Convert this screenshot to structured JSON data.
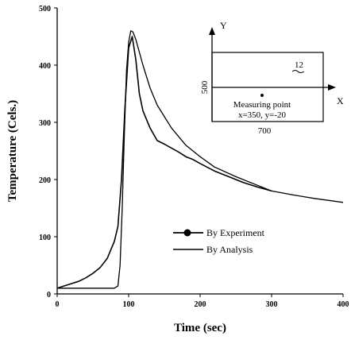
{
  "chart_data": {
    "type": "line",
    "xlabel": "Time (sec)",
    "ylabel": "Temperature (Cels.)",
    "xlim": [
      0,
      400
    ],
    "ylim": [
      0,
      500
    ],
    "x_ticks": [
      "0",
      "100",
      "200",
      "300",
      "400"
    ],
    "y_ticks": [
      "0",
      "100",
      "200",
      "300",
      "400",
      "500"
    ],
    "legend_position": "center-right",
    "series": [
      {
        "name": "By Experiment",
        "marker": "circle",
        "x": [
          0,
          10,
          20,
          30,
          40,
          50,
          60,
          70,
          80,
          85,
          90,
          95,
          100,
          105,
          110,
          115,
          120,
          130,
          140,
          150,
          160,
          170,
          180,
          190,
          200,
          220,
          240,
          260,
          280,
          300
        ],
        "y": [
          10,
          14,
          18,
          22,
          28,
          36,
          46,
          62,
          92,
          118,
          200,
          330,
          430,
          450,
          410,
          350,
          320,
          290,
          268,
          262,
          255,
          248,
          240,
          235,
          228,
          215,
          205,
          195,
          187,
          180
        ]
      },
      {
        "name": "By Analysis",
        "x": [
          0,
          40,
          80,
          85,
          88,
          91,
          94,
          97,
          100,
          103,
          106,
          110,
          120,
          130,
          140,
          160,
          180,
          200,
          220,
          250,
          280,
          300,
          330,
          360,
          400
        ],
        "y": [
          10,
          10,
          10,
          14,
          50,
          150,
          280,
          390,
          440,
          460,
          458,
          445,
          400,
          360,
          330,
          290,
          260,
          240,
          222,
          205,
          190,
          180,
          173,
          167,
          160
        ]
      }
    ],
    "inset": {
      "x_axis_label": "X",
      "y_axis_label": "Y",
      "height_label": "500",
      "width_label": "700",
      "marker_label": "12",
      "measuring_point_label": "Measuring point",
      "measuring_point_coords": "x=350, y=-20"
    }
  }
}
